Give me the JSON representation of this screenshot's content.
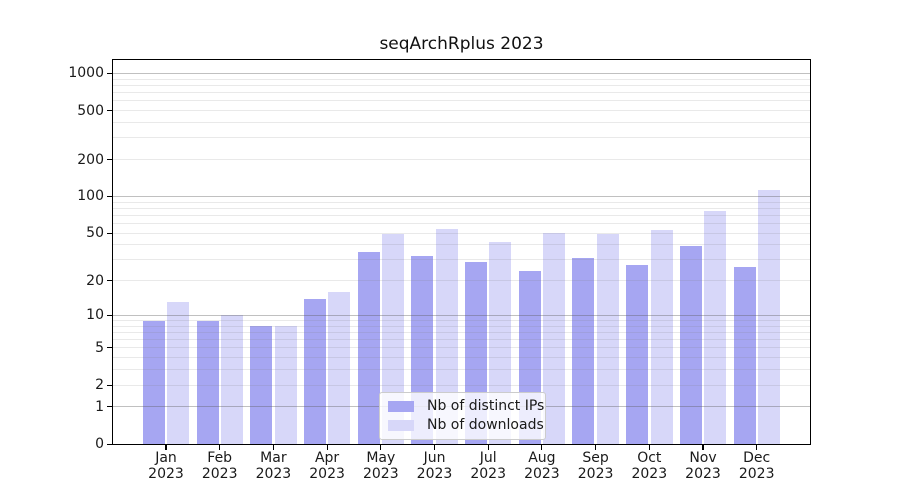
{
  "title": "seqArchRplus 2023",
  "chart_data": {
    "type": "bar",
    "title": "seqArchRplus 2023",
    "categories": [
      "Jan",
      "Feb",
      "Mar",
      "Apr",
      "May",
      "Jun",
      "Jul",
      "Aug",
      "Sep",
      "Oct",
      "Nov",
      "Dec"
    ],
    "category_year_line": "2023",
    "series": [
      {
        "name": "Nb of distinct IPs",
        "color": "#a6a6f2",
        "values": [
          9,
          9,
          8,
          14,
          35,
          32,
          29,
          24,
          31,
          27,
          39,
          26
        ]
      },
      {
        "name": "Nb of downloads",
        "color": "#d7d7f9",
        "values": [
          13,
          10,
          8,
          16,
          49,
          54,
          42,
          50,
          49,
          53,
          76,
          114
        ]
      }
    ],
    "yscale": "log10(value+1)",
    "ylim": [
      0,
      1290
    ],
    "yticks": [
      0,
      1,
      2,
      5,
      10,
      20,
      50,
      100,
      200,
      500,
      1000
    ],
    "y_major_gridlines": [
      1,
      10,
      100,
      1000
    ],
    "y_minor_gridlines": [
      2,
      3,
      4,
      5,
      6,
      7,
      8,
      9,
      20,
      30,
      40,
      50,
      60,
      70,
      80,
      90,
      200,
      300,
      400,
      500,
      600,
      700,
      800,
      900
    ],
    "grid": "horizontal",
    "legend": {
      "position": "lower center",
      "items": [
        "Nb of distinct IPs",
        "Nb of downloads"
      ]
    }
  },
  "colors": {
    "background": "#ffffff",
    "bar_distinct_ips": "#a6a6f2",
    "bar_downloads": "#d7d7f9",
    "axis_text": "#1a1a1a",
    "spine": "#000000",
    "legend_border": "#cccccc"
  }
}
